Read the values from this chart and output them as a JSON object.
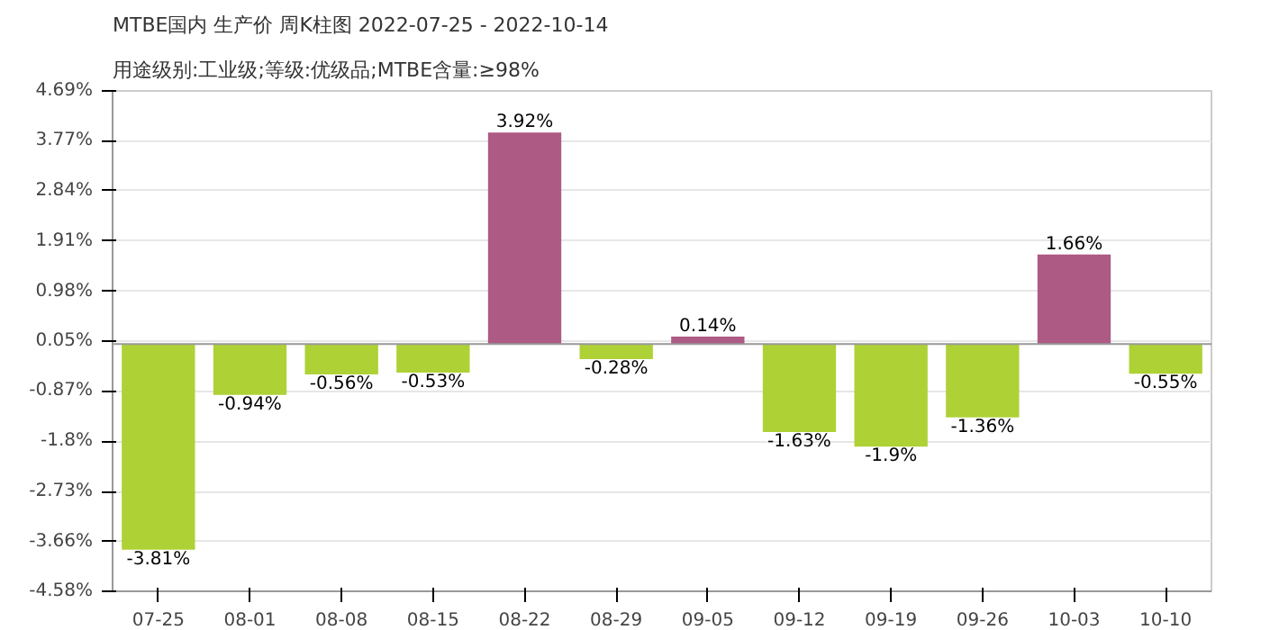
{
  "chart_data": {
    "type": "bar",
    "title": "MTBE国内 生产价 周K柱图 2022-07-25 - 2022-10-14",
    "subtitle": "用途级别:工业级;等级:优级品;MTBE含量:≥98%",
    "categories": [
      "07-25",
      "08-01",
      "08-08",
      "08-15",
      "08-22",
      "08-29",
      "09-05",
      "09-12",
      "09-19",
      "09-26",
      "10-03",
      "10-10"
    ],
    "values": [
      -3.81,
      -0.94,
      -0.56,
      -0.53,
      3.92,
      -0.28,
      0.14,
      -1.63,
      -1.9,
      -1.36,
      1.66,
      -0.55
    ],
    "colors": [
      "#aed136",
      "#aed136",
      "#aed136",
      "#aed136",
      "#ad5a85",
      "#aed136",
      "#ad5a85",
      "#aed136",
      "#aed136",
      "#aed136",
      "#ad5a85",
      "#aed136"
    ],
    "value_labels": [
      "-3.81%",
      "-0.94%",
      "-0.56%",
      "-0.53%",
      "3.92%",
      "-0.28%",
      "0.14%",
      "-1.63%",
      "-1.9%",
      "-1.36%",
      "1.66%",
      "-0.55%"
    ],
    "ylim": [
      -4.58,
      4.69
    ],
    "yticks": [
      {
        "value": 4.69,
        "label": "4.69%"
      },
      {
        "value": 3.77,
        "label": "3.77%"
      },
      {
        "value": 2.84,
        "label": "2.84%"
      },
      {
        "value": 1.91,
        "label": "1.91%"
      },
      {
        "value": 0.98,
        "label": "0.98%"
      },
      {
        "value": 0.05,
        "label": "0.05%"
      },
      {
        "value": -0.87,
        "label": "-0.87%"
      },
      {
        "value": -1.8,
        "label": "-1.8%"
      },
      {
        "value": -2.73,
        "label": "-2.73%"
      },
      {
        "value": -3.66,
        "label": "-3.66%"
      },
      {
        "value": -4.58,
        "label": "-4.58%"
      }
    ],
    "grid": "y"
  }
}
